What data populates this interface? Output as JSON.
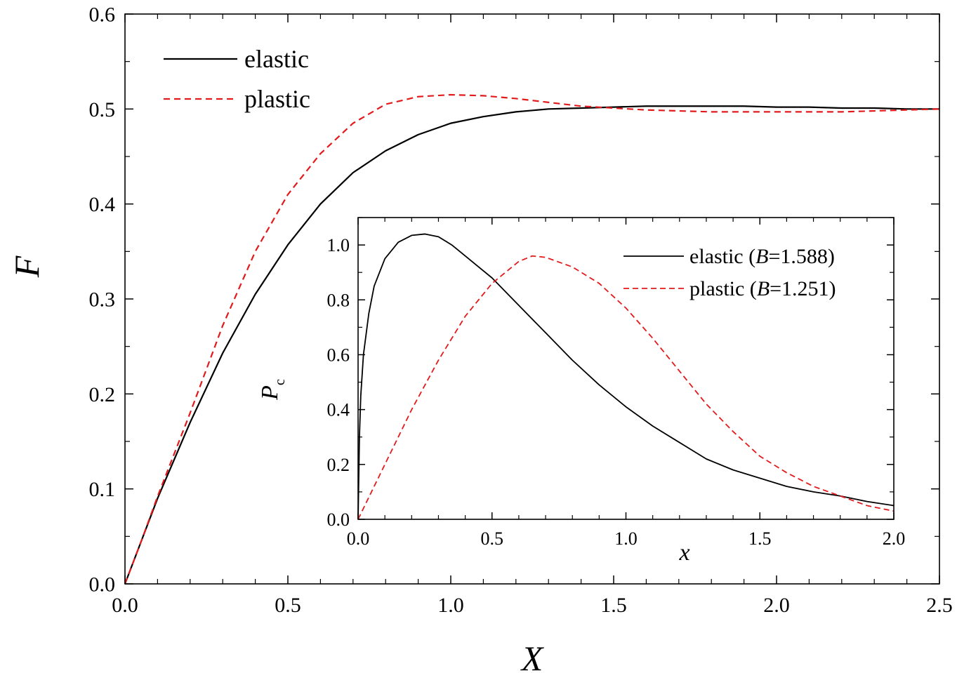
{
  "chart_data": [
    {
      "type": "line",
      "xlabel": "X",
      "ylabel": "F",
      "xlim": [
        0,
        2.5
      ],
      "ylim": [
        0,
        0.6
      ],
      "xticks": [
        "0.0",
        "0.5",
        "1.0",
        "1.5",
        "2.0",
        "2.5"
      ],
      "yticks": [
        "0.0",
        "0.1",
        "0.2",
        "0.3",
        "0.4",
        "0.5",
        "0.6"
      ],
      "grid": false,
      "legend_position": "top-left",
      "series": [
        {
          "name": "elastic",
          "color": "#000000",
          "style": "solid",
          "points": [
            [
              0,
              0
            ],
            [
              0.05,
              0.045
            ],
            [
              0.1,
              0.09
            ],
            [
              0.2,
              0.17
            ],
            [
              0.3,
              0.243
            ],
            [
              0.4,
              0.305
            ],
            [
              0.5,
              0.357
            ],
            [
              0.6,
              0.4
            ],
            [
              0.7,
              0.433
            ],
            [
              0.8,
              0.456
            ],
            [
              0.9,
              0.473
            ],
            [
              1.0,
              0.485
            ],
            [
              1.1,
              0.492
            ],
            [
              1.2,
              0.497
            ],
            [
              1.3,
              0.5
            ],
            [
              1.4,
              0.501
            ],
            [
              1.5,
              0.502
            ],
            [
              1.6,
              0.503
            ],
            [
              1.7,
              0.503
            ],
            [
              1.8,
              0.503
            ],
            [
              1.9,
              0.503
            ],
            [
              2.0,
              0.502
            ],
            [
              2.1,
              0.502
            ],
            [
              2.2,
              0.501
            ],
            [
              2.3,
              0.501
            ],
            [
              2.4,
              0.5
            ],
            [
              2.5,
              0.5
            ]
          ]
        },
        {
          "name": "plastic",
          "color": "#e31a1c",
          "style": "dashed",
          "points": [
            [
              0,
              0
            ],
            [
              0.05,
              0.045
            ],
            [
              0.1,
              0.092
            ],
            [
              0.2,
              0.18
            ],
            [
              0.3,
              0.272
            ],
            [
              0.4,
              0.35
            ],
            [
              0.5,
              0.41
            ],
            [
              0.6,
              0.453
            ],
            [
              0.7,
              0.485
            ],
            [
              0.8,
              0.505
            ],
            [
              0.9,
              0.513
            ],
            [
              1.0,
              0.515
            ],
            [
              1.1,
              0.514
            ],
            [
              1.2,
              0.511
            ],
            [
              1.3,
              0.507
            ],
            [
              1.4,
              0.503
            ],
            [
              1.5,
              0.501
            ],
            [
              1.6,
              0.499
            ],
            [
              1.7,
              0.498
            ],
            [
              1.8,
              0.497
            ],
            [
              1.9,
              0.497
            ],
            [
              2.0,
              0.497
            ],
            [
              2.1,
              0.497
            ],
            [
              2.2,
              0.497
            ],
            [
              2.3,
              0.498
            ],
            [
              2.4,
              0.499
            ],
            [
              2.5,
              0.5
            ]
          ]
        }
      ]
    },
    {
      "type": "line",
      "xlabel": "x",
      "ylabel": "P",
      "ylabel_sub": "c",
      "xlim": [
        0,
        2.0
      ],
      "ylim": [
        0,
        1.1
      ],
      "xticks": [
        "0.0",
        "0.5",
        "1.0",
        "1.5",
        "2.0"
      ],
      "yticks": [
        "0.0",
        "0.2",
        "0.4",
        "0.6",
        "0.8",
        "1.0"
      ],
      "grid": false,
      "legend_position": "top-right",
      "series": [
        {
          "name_prefix": "elastic (",
          "name_var": "B",
          "name_suffix": "=1.588)",
          "color": "#000000",
          "style": "solid",
          "points": [
            [
              0,
              0
            ],
            [
              0.005,
              0.3
            ],
            [
              0.01,
              0.45
            ],
            [
              0.02,
              0.6
            ],
            [
              0.04,
              0.75
            ],
            [
              0.06,
              0.85
            ],
            [
              0.1,
              0.95
            ],
            [
              0.15,
              1.01
            ],
            [
              0.2,
              1.035
            ],
            [
              0.25,
              1.04
            ],
            [
              0.3,
              1.03
            ],
            [
              0.35,
              1.0
            ],
            [
              0.4,
              0.96
            ],
            [
              0.5,
              0.88
            ],
            [
              0.6,
              0.78
            ],
            [
              0.7,
              0.68
            ],
            [
              0.8,
              0.58
            ],
            [
              0.9,
              0.49
            ],
            [
              1.0,
              0.41
            ],
            [
              1.1,
              0.34
            ],
            [
              1.2,
              0.28
            ],
            [
              1.3,
              0.22
            ],
            [
              1.4,
              0.18
            ],
            [
              1.5,
              0.15
            ],
            [
              1.6,
              0.12
            ],
            [
              1.7,
              0.1
            ],
            [
              1.8,
              0.085
            ],
            [
              1.9,
              0.065
            ],
            [
              2.0,
              0.05
            ]
          ]
        },
        {
          "name_prefix": "plastic (",
          "name_var": "B",
          "name_suffix": "=1.251)",
          "color": "#e31a1c",
          "style": "dashed",
          "points": [
            [
              0,
              0
            ],
            [
              0.1,
              0.2
            ],
            [
              0.2,
              0.4
            ],
            [
              0.3,
              0.58
            ],
            [
              0.4,
              0.74
            ],
            [
              0.5,
              0.86
            ],
            [
              0.6,
              0.94
            ],
            [
              0.65,
              0.96
            ],
            [
              0.7,
              0.955
            ],
            [
              0.8,
              0.92
            ],
            [
              0.9,
              0.86
            ],
            [
              1.0,
              0.77
            ],
            [
              1.1,
              0.66
            ],
            [
              1.2,
              0.54
            ],
            [
              1.3,
              0.42
            ],
            [
              1.4,
              0.32
            ],
            [
              1.5,
              0.23
            ],
            [
              1.6,
              0.17
            ],
            [
              1.7,
              0.12
            ],
            [
              1.8,
              0.085
            ],
            [
              1.9,
              0.05
            ],
            [
              2.0,
              0.03
            ]
          ]
        }
      ]
    }
  ]
}
